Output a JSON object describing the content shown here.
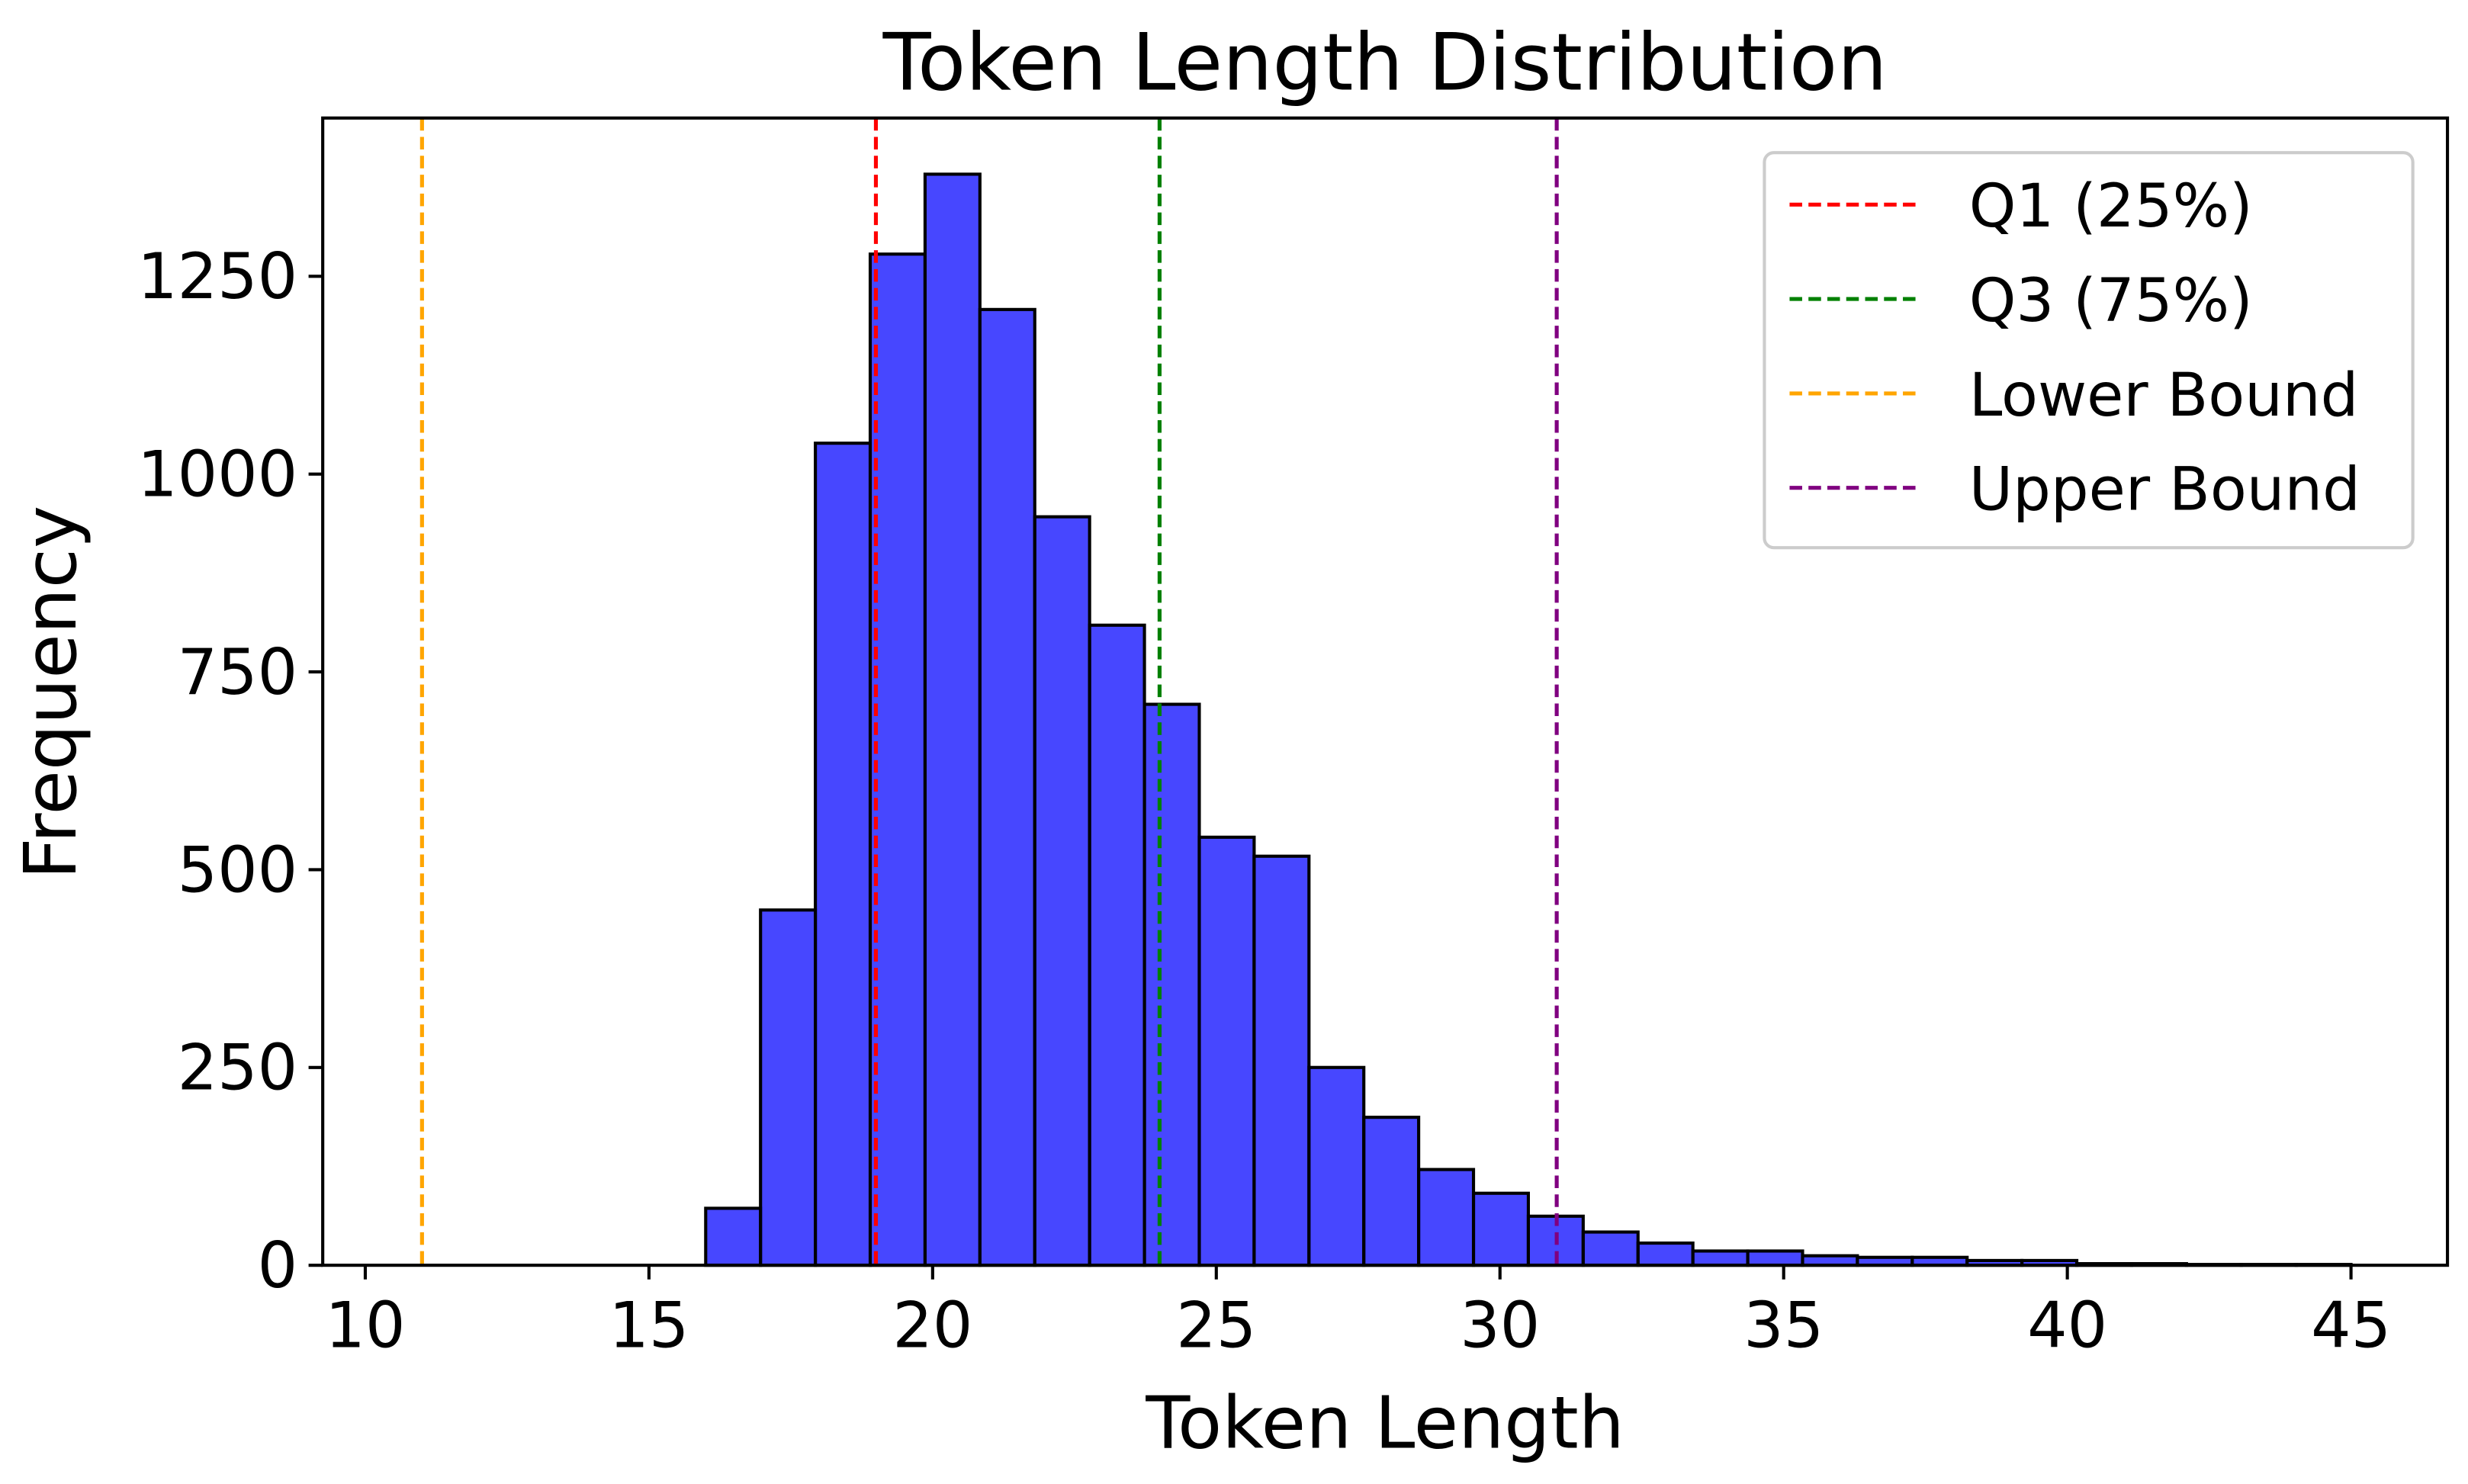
{
  "chart_data": {
    "type": "bar",
    "title": "Token Length Distribution",
    "xlabel": "Token Length",
    "ylabel": "Frequency",
    "xlim": [
      9.25,
      46.7
    ],
    "ylim": [
      0,
      1450
    ],
    "xticks": [
      10,
      15,
      20,
      25,
      30,
      35,
      40,
      45
    ],
    "yticks": [
      0,
      250,
      500,
      750,
      1000,
      1250
    ],
    "grid": false,
    "bin_start": 16,
    "bin_end": 45,
    "values": [
      72,
      449,
      1039,
      1278,
      1379,
      1208,
      946,
      809,
      709,
      541,
      517,
      250,
      187,
      121,
      91,
      62,
      42,
      28,
      18,
      18,
      12,
      10,
      10,
      6,
      6,
      2,
      2,
      1,
      1,
      1
    ],
    "bar_color": "#0000ff",
    "vlines": [
      {
        "label": "Q1 (25%)",
        "x": 19,
        "color": "#ff0000"
      },
      {
        "label": "Q3 (75%)",
        "x": 24,
        "color": "#008000"
      },
      {
        "label": "Lower Bound",
        "x": 11,
        "color": "#ffa500"
      },
      {
        "label": "Upper Bound",
        "x": 31,
        "color": "#800080"
      }
    ],
    "legend_position": "top-right"
  }
}
